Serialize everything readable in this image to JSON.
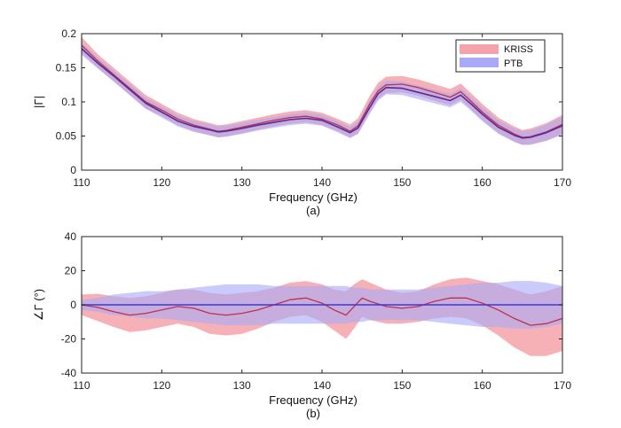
{
  "colors": {
    "kriss_band": "#f4a3aa",
    "ptb_band": "#a9a9f8",
    "kriss_line": "#c0304a",
    "ptb_line": "#3a3ad6",
    "overlap_line": "#5a2a9a"
  },
  "chart_data": [
    {
      "type": "line",
      "panel_label": "(a)",
      "xlabel": "Frequency (GHz)",
      "ylabel": "|Γ|",
      "xlim": [
        110,
        170
      ],
      "ylim": [
        0,
        0.2
      ],
      "xticks": [
        "110",
        "120",
        "130",
        "140",
        "150",
        "160",
        "170"
      ],
      "yticks": [
        "0",
        "0.05",
        "0.1",
        "0.15",
        "0.2"
      ],
      "grid": false,
      "legend": {
        "placement": "top-right",
        "entries": [
          "KRISS",
          "PTB"
        ]
      },
      "x": [
        110,
        112,
        114,
        116,
        118,
        120,
        122,
        124,
        126,
        127,
        128,
        130,
        132,
        134,
        136,
        138,
        140,
        142,
        143.5,
        144.5,
        146,
        147,
        148,
        150,
        152,
        154,
        156,
        157.3,
        158.5,
        160,
        162,
        164,
        165,
        166,
        168,
        170
      ],
      "series": [
        {
          "name": "KRISS",
          "values": [
            0.183,
            0.16,
            0.14,
            0.12,
            0.1,
            0.088,
            0.075,
            0.066,
            0.06,
            0.057,
            0.058,
            0.063,
            0.068,
            0.073,
            0.077,
            0.079,
            0.075,
            0.066,
            0.057,
            0.065,
            0.098,
            0.116,
            0.125,
            0.126,
            0.121,
            0.114,
            0.107,
            0.115,
            0.102,
            0.085,
            0.066,
            0.053,
            0.048,
            0.049,
            0.056,
            0.067
          ],
          "band": [
            0.012,
            0.01,
            0.01,
            0.01,
            0.01,
            0.009,
            0.009,
            0.009,
            0.009,
            0.009,
            0.009,
            0.009,
            0.009,
            0.009,
            0.009,
            0.009,
            0.009,
            0.009,
            0.01,
            0.011,
            0.012,
            0.012,
            0.012,
            0.012,
            0.012,
            0.012,
            0.012,
            0.012,
            0.012,
            0.012,
            0.011,
            0.011,
            0.011,
            0.012,
            0.013,
            0.014
          ]
        },
        {
          "name": "PTB",
          "values": [
            0.178,
            0.157,
            0.138,
            0.118,
            0.098,
            0.085,
            0.072,
            0.064,
            0.059,
            0.056,
            0.057,
            0.061,
            0.066,
            0.07,
            0.074,
            0.076,
            0.073,
            0.063,
            0.055,
            0.062,
            0.093,
            0.112,
            0.121,
            0.12,
            0.114,
            0.108,
            0.102,
            0.11,
            0.098,
            0.082,
            0.063,
            0.051,
            0.047,
            0.048,
            0.055,
            0.065
          ],
          "band": [
            0.009,
            0.008,
            0.008,
            0.008,
            0.008,
            0.008,
            0.008,
            0.008,
            0.008,
            0.008,
            0.008,
            0.008,
            0.008,
            0.008,
            0.008,
            0.008,
            0.008,
            0.008,
            0.008,
            0.009,
            0.01,
            0.01,
            0.01,
            0.01,
            0.01,
            0.01,
            0.01,
            0.01,
            0.01,
            0.01,
            0.01,
            0.01,
            0.01,
            0.01,
            0.012,
            0.013
          ]
        }
      ]
    },
    {
      "type": "line",
      "panel_label": "(b)",
      "xlabel": "Frequency (GHz)",
      "ylabel": "∠Γ (°)",
      "xlim": [
        110,
        170
      ],
      "ylim": [
        -40,
        40
      ],
      "xticks": [
        "110",
        "120",
        "130",
        "140",
        "150",
        "160",
        "170"
      ],
      "yticks": [
        "40",
        "20",
        "0",
        "-20",
        "-40"
      ],
      "grid": false,
      "x": [
        110,
        112,
        114,
        116,
        118,
        120,
        122,
        124,
        126,
        128,
        130,
        132,
        134,
        136,
        138,
        140,
        141.5,
        143,
        144,
        145,
        146,
        148,
        150,
        152,
        154,
        156,
        158,
        160,
        162,
        164,
        166,
        168,
        170
      ],
      "series": [
        {
          "name": "KRISS",
          "values": [
            0,
            -1.5,
            -4,
            -6,
            -5,
            -3,
            -1,
            -2,
            -5,
            -6,
            -5,
            -3,
            0,
            3,
            4,
            1,
            -3,
            -6,
            -1,
            4,
            2,
            -1,
            -2,
            -1,
            2,
            4,
            4,
            1,
            -3,
            -8,
            -12,
            -11,
            -8
          ],
          "band": [
            6,
            8,
            9,
            10,
            10,
            10,
            10,
            11,
            12,
            12,
            12,
            11,
            10,
            10,
            10,
            11,
            12,
            14,
            13,
            11,
            11,
            10,
            9,
            9,
            10,
            11,
            12,
            13,
            15,
            17,
            18,
            19,
            19
          ]
        },
        {
          "name": "PTB",
          "values": [
            0,
            0,
            0,
            0,
            0,
            0,
            0,
            0,
            0,
            0,
            0,
            0,
            0,
            0,
            0,
            0,
            0,
            0,
            0,
            0,
            0,
            0,
            0,
            0,
            0,
            0,
            0,
            0,
            0,
            0,
            0,
            0,
            0
          ],
          "band": [
            3,
            4,
            6,
            7,
            8,
            8,
            9,
            10,
            11,
            12,
            12,
            12,
            11,
            11,
            11,
            11,
            11,
            11,
            10,
            10,
            9,
            9,
            9,
            9,
            10,
            11,
            12,
            13,
            13,
            14,
            14,
            13,
            11
          ]
        }
      ]
    }
  ]
}
